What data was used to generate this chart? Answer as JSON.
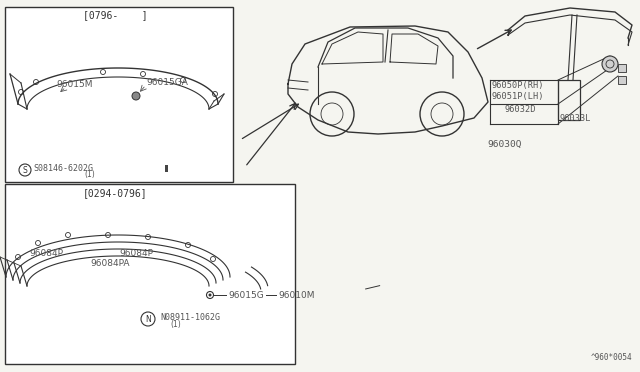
{
  "bg_color": "#f5f5f0",
  "line_color": "#333333",
  "text_color": "#555555",
  "box1_label": "[0796-    ]",
  "box2_label": "[0294-0796]",
  "box1_bolt_label": "S08146-6202G",
  "box1_bolt_sub": "(1)",
  "box2_bolt_label": "N08911-1062G",
  "box2_bolt_sub": "(1)",
  "box1_parts": [
    "96015M",
    "96015GA"
  ],
  "box2_parts": [
    "96084P",
    "96084P",
    "96084PA",
    "96015G",
    "96010M"
  ],
  "right_labels": [
    "96050P(RH)",
    "96051P(LH)",
    "96032D",
    "96033L",
    "96030Q"
  ],
  "title_bottom": "^960*0054"
}
